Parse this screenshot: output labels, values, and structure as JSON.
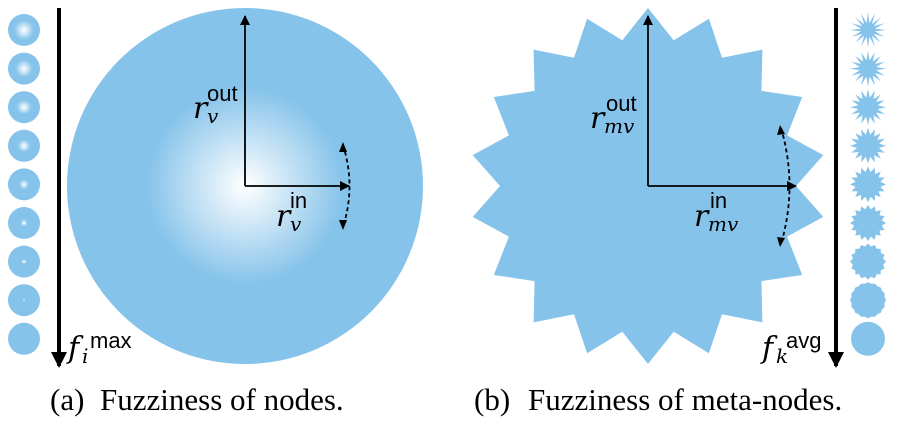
{
  "panel_a": {
    "caption_tag": "(a)",
    "caption_text": "Fuzziness of nodes.",
    "r_out": {
      "base": "r",
      "sub": "v",
      "sup": "out"
    },
    "r_in": {
      "base": "r",
      "sub": "v",
      "sup": "in"
    },
    "axis_label": {
      "base": "f",
      "sub": "i",
      "sup": "max"
    },
    "fill_color": "#86c3ea",
    "center_color": "#ffffff",
    "scale_icon": "fuzzy-circle-icon",
    "scale_steps": 9
  },
  "panel_b": {
    "caption_tag": "(b)",
    "caption_text": "Fuzziness of meta-nodes.",
    "r_out": {
      "base": "r",
      "sub": "mv",
      "sup": "out"
    },
    "r_in": {
      "base": "r",
      "sub": "mv",
      "sup": "in"
    },
    "axis_label": {
      "base": "f",
      "sub": "k",
      "sup": "avg"
    },
    "fill_color": "#86c3ea",
    "scale_icon": "star-burst-icon",
    "scale_steps": 9,
    "star_points": 18
  }
}
